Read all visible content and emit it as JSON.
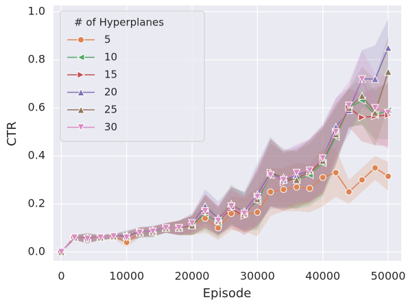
{
  "chart_data": {
    "type": "line",
    "xlabel": "Episode",
    "ylabel": "CTR",
    "x": [
      0,
      2000,
      4000,
      6000,
      8000,
      10000,
      12000,
      14000,
      16000,
      18000,
      20000,
      22000,
      24000,
      26000,
      28000,
      30000,
      32000,
      34000,
      36000,
      38000,
      40000,
      42000,
      44000,
      46000,
      48000,
      50000
    ],
    "xlim": [
      -1200,
      52000
    ],
    "ylim": [
      -0.037,
      1.026
    ],
    "xticks": [
      0,
      10000,
      20000,
      30000,
      40000,
      50000
    ],
    "yticks": [
      {
        "value": 0,
        "label": "0.0"
      },
      0.2,
      0.4,
      0.6,
      0.8,
      {
        "value": 1,
        "label": "1.0"
      }
    ],
    "grid": true,
    "legend_title": "# of Hyperplanes",
    "legend_position": "upper left",
    "series": [
      {
        "name": "5",
        "color": "#dd8452",
        "marker": "circle",
        "values": [
          0,
          0.06,
          0.055,
          0.06,
          0.065,
          0.04,
          0.08,
          0.085,
          0.1,
          0.1,
          0.11,
          0.14,
          0.1,
          0.16,
          0.155,
          0.165,
          0.25,
          0.26,
          0.27,
          0.265,
          0.31,
          0.33,
          0.25,
          0.3,
          0.35,
          0.315
        ],
        "error": [
          0,
          0.01,
          0.015,
          0.01,
          0.01,
          0.02,
          0.02,
          0.02,
          0.02,
          0.03,
          0.04,
          0.06,
          0.05,
          0.07,
          0.07,
          0.1,
          0.1,
          0.09,
          0.1,
          0.1,
          0.12,
          0.1,
          0.05,
          0.05,
          0.05,
          0.06
        ]
      },
      {
        "name": "10",
        "color": "#55a868",
        "marker": "left",
        "values": [
          0,
          0.06,
          0.055,
          0.06,
          0.065,
          0.06,
          0.08,
          0.08,
          0.1,
          0.1,
          0.11,
          0.16,
          0.12,
          0.19,
          0.17,
          0.21,
          0.32,
          0.3,
          0.3,
          0.32,
          0.37,
          0.48,
          0.6,
          0.63,
          0.57,
          0.59
        ],
        "error": [
          0,
          0.01,
          0.02,
          0.01,
          0.01,
          0.02,
          0.02,
          0.02,
          0.02,
          0.03,
          0.04,
          0.07,
          0.06,
          0.08,
          0.08,
          0.12,
          0.13,
          0.12,
          0.12,
          0.13,
          0.14,
          0.12,
          0.08,
          0.1,
          0.1,
          0.12
        ]
      },
      {
        "name": "15",
        "color": "#c44e52",
        "marker": "right",
        "values": [
          0,
          0.06,
          0.055,
          0.06,
          0.065,
          0.065,
          0.085,
          0.085,
          0.1,
          0.1,
          0.11,
          0.17,
          0.13,
          0.18,
          0.15,
          0.23,
          0.33,
          0.29,
          0.31,
          0.33,
          0.38,
          0.5,
          0.6,
          0.56,
          0.565,
          0.57
        ],
        "error": [
          0,
          0.01,
          0.02,
          0.01,
          0.01,
          0.02,
          0.02,
          0.02,
          0.02,
          0.03,
          0.04,
          0.07,
          0.06,
          0.08,
          0.08,
          0.12,
          0.14,
          0.12,
          0.12,
          0.13,
          0.14,
          0.12,
          0.08,
          0.1,
          0.12,
          0.13
        ]
      },
      {
        "name": "20",
        "color": "#8172b3",
        "marker": "up",
        "values": [
          0,
          0.06,
          0.055,
          0.06,
          0.065,
          0.07,
          0.08,
          0.09,
          0.1,
          0.1,
          0.12,
          0.19,
          0.14,
          0.19,
          0.17,
          0.24,
          0.33,
          0.3,
          0.32,
          0.34,
          0.39,
          0.52,
          0.59,
          0.72,
          0.72,
          0.85
        ],
        "error": [
          0,
          0.01,
          0.02,
          0.01,
          0.01,
          0.02,
          0.02,
          0.02,
          0.02,
          0.03,
          0.04,
          0.07,
          0.07,
          0.08,
          0.08,
          0.13,
          0.15,
          0.12,
          0.12,
          0.13,
          0.14,
          0.12,
          0.1,
          0.12,
          0.14,
          0.12
        ]
      },
      {
        "name": "25",
        "color": "#937860",
        "marker": "up",
        "values": [
          0,
          0.06,
          0.06,
          0.06,
          0.065,
          0.065,
          0.08,
          0.085,
          0.1,
          0.1,
          0.11,
          0.17,
          0.13,
          0.2,
          0.16,
          0.22,
          0.33,
          0.31,
          0.3,
          0.34,
          0.38,
          0.49,
          0.6,
          0.65,
          0.58,
          0.75
        ],
        "error": [
          0,
          0.01,
          0.02,
          0.01,
          0.01,
          0.02,
          0.02,
          0.02,
          0.02,
          0.03,
          0.04,
          0.07,
          0.06,
          0.08,
          0.08,
          0.12,
          0.14,
          0.12,
          0.12,
          0.13,
          0.14,
          0.12,
          0.08,
          0.12,
          0.14,
          0.15
        ]
      },
      {
        "name": "30",
        "color": "#da8bc3",
        "marker": "down",
        "values": [
          0,
          0.06,
          0.055,
          0.06,
          0.065,
          0.06,
          0.08,
          0.085,
          0.1,
          0.1,
          0.12,
          0.17,
          0.13,
          0.19,
          0.16,
          0.23,
          0.32,
          0.3,
          0.33,
          0.34,
          0.39,
          0.5,
          0.61,
          0.72,
          0.6,
          0.58
        ],
        "error": [
          0,
          0.01,
          0.02,
          0.01,
          0.01,
          0.02,
          0.02,
          0.02,
          0.02,
          0.03,
          0.04,
          0.07,
          0.06,
          0.08,
          0.08,
          0.12,
          0.13,
          0.12,
          0.12,
          0.13,
          0.14,
          0.14,
          0.1,
          0.12,
          0.14,
          0.15
        ]
      }
    ]
  }
}
